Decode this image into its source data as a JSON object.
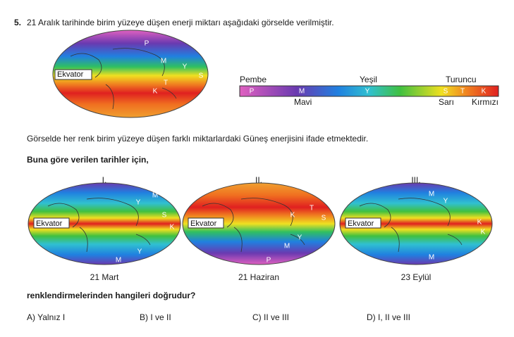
{
  "question": {
    "number": "5.",
    "text": "21 Aralık tarihinde birim yüzeye düşen enerji miktarı aşağıdaki görselde verilmiştir."
  },
  "top_map": {
    "equator": "Ekvator",
    "letters": [
      "P",
      "M",
      "Y",
      "S",
      "T",
      "K"
    ]
  },
  "color_scale": {
    "top_labels": [
      "Pembe",
      "Yeşil",
      "Turuncu"
    ],
    "letters": [
      "P",
      "M",
      "Y",
      "S",
      "T",
      "K"
    ],
    "bottom_labels": [
      "Mavi",
      "Sarı",
      "Kırmızı"
    ]
  },
  "statement": "Görselde her renk birim yüzeye düşen farklı miktarlardaki Güneş enerjisini ifade etmektedir.",
  "prompt": "Buna göre verilen tarihler için,",
  "maps": [
    {
      "numeral": "I.",
      "date": "21 Mart",
      "equator": "Ekvator",
      "letters": [
        "M",
        "Y",
        "S",
        "K",
        "Y",
        "M"
      ]
    },
    {
      "numeral": "II.",
      "date": "21 Haziran",
      "equator": "Ekvator",
      "letters": [
        "K",
        "T",
        "S",
        "Y",
        "M",
        "P"
      ]
    },
    {
      "numeral": "III.",
      "date": "23 Eylül",
      "equator": "Ekvator",
      "letters": [
        "M",
        "Y",
        "K",
        "K",
        "M"
      ]
    }
  ],
  "ending": "renklendirmelerinden hangileri doğrudur?",
  "options": [
    "A) Yalnız I",
    "B) I ve II",
    "C) II ve III",
    "D) I, II ve III"
  ]
}
